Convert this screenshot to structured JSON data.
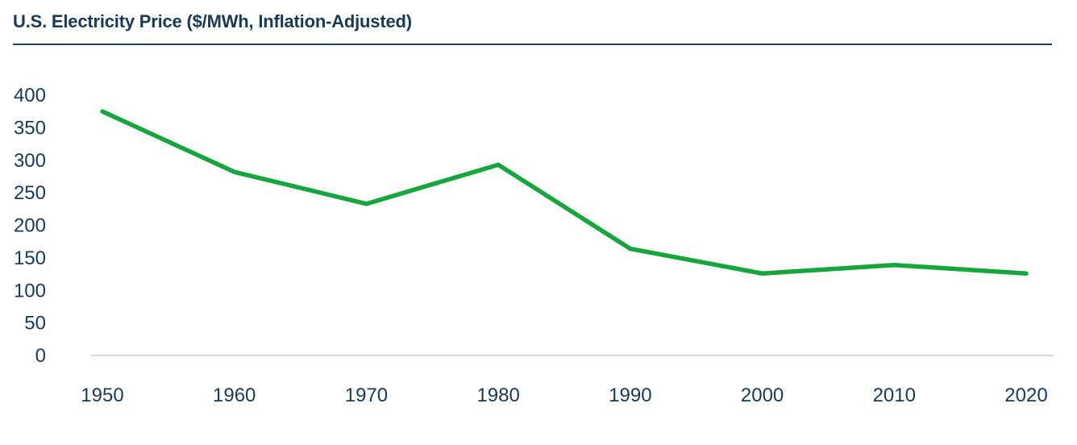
{
  "header": {
    "title": "U.S. Electricity Price ($/MWh, Inflation-Adjusted)"
  },
  "chart_data": {
    "type": "line",
    "title": "U.S. Electricity Price ($/MWh, Inflation-Adjusted)",
    "categories": [
      "1950",
      "1960",
      "1970",
      "1980",
      "1990",
      "2000",
      "2010",
      "2020"
    ],
    "series": [
      {
        "name": "U.S. electricity price ($/MWh, inflation-adjusted)",
        "values": [
          375,
          282,
          233,
          293,
          164,
          126,
          139,
          126
        ]
      }
    ],
    "xlabel": "",
    "ylabel": "",
    "ylim": [
      0,
      400
    ],
    "y_ticks": [
      0,
      50,
      100,
      150,
      200,
      250,
      300,
      350,
      400
    ],
    "grid": false,
    "legend_position": "none",
    "colors": {
      "line": "#15a63c",
      "text": "#17395c",
      "title": "#17395c",
      "divider": "#1c4064",
      "axis_line": "#d9d9d9",
      "background": "#ffffff"
    }
  }
}
